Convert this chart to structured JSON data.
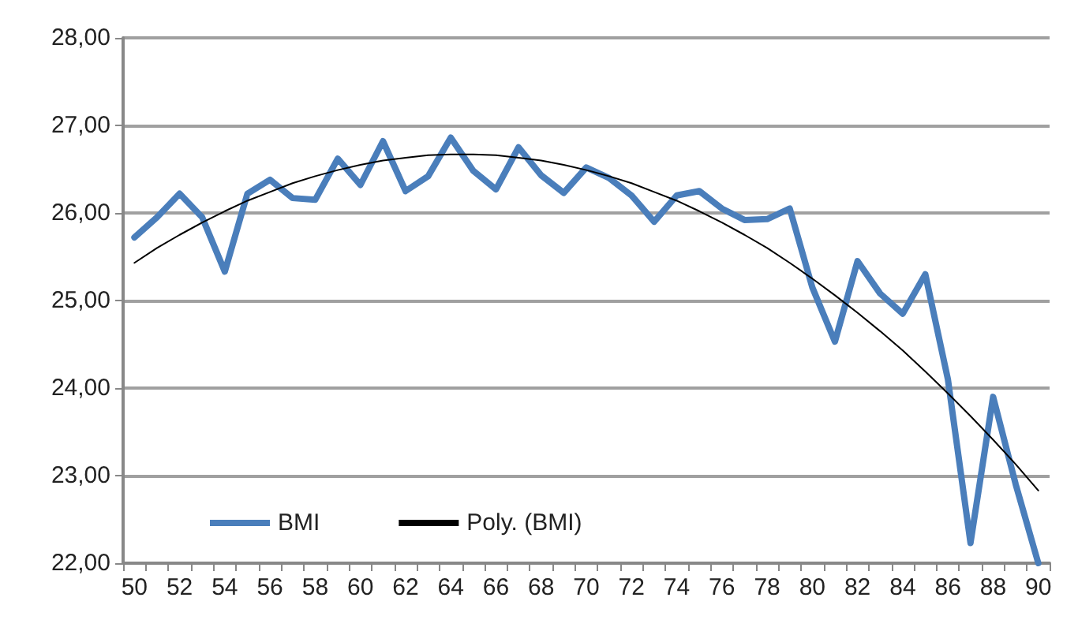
{
  "chart_data": {
    "type": "line",
    "categories": [
      "50",
      null,
      "52",
      null,
      "54",
      null,
      "56",
      null,
      "58",
      null,
      "60",
      null,
      "62",
      null,
      "64",
      null,
      "66",
      null,
      "68",
      null,
      "70",
      null,
      "72",
      null,
      "74",
      null,
      "76",
      null,
      "78",
      null,
      "80",
      null,
      "82",
      null,
      "84",
      null,
      "86",
      null,
      "88",
      null,
      "90"
    ],
    "series": [
      {
        "name": "BMI",
        "color": "#4a7ebb",
        "values": [
          25.72,
          25.95,
          26.22,
          25.95,
          25.33,
          26.22,
          26.38,
          26.17,
          26.15,
          26.62,
          26.32,
          26.82,
          26.25,
          26.42,
          26.86,
          26.48,
          26.27,
          26.75,
          26.43,
          26.23,
          26.52,
          26.4,
          26.2,
          25.9,
          26.2,
          26.25,
          26.05,
          25.92,
          25.93,
          26.05,
          25.15,
          24.53,
          25.45,
          25.08,
          24.85,
          25.3,
          24.1,
          22.23,
          23.9,
          22.9,
          22.0
        ]
      },
      {
        "name": "Poly. (BMI)",
        "color": "#000000",
        "values": [
          25.43,
          25.6,
          25.75,
          25.89,
          26.02,
          26.14,
          26.24,
          26.34,
          26.42,
          26.49,
          26.55,
          26.6,
          26.63,
          26.66,
          26.67,
          26.67,
          26.66,
          26.63,
          26.6,
          26.55,
          26.49,
          26.42,
          26.34,
          26.24,
          26.14,
          26.02,
          25.89,
          25.75,
          25.6,
          25.43,
          25.25,
          25.06,
          24.86,
          24.65,
          24.43,
          24.19,
          23.94,
          23.68,
          23.41,
          23.13,
          22.83
        ]
      }
    ],
    "ylim": [
      22,
      28
    ],
    "yticks": [
      {
        "value": 22,
        "label": "22,00"
      },
      {
        "value": 23,
        "label": "23,00"
      },
      {
        "value": 24,
        "label": "24,00"
      },
      {
        "value": 25,
        "label": "25,00"
      },
      {
        "value": 26,
        "label": "26,00"
      },
      {
        "value": 27,
        "label": "27,00"
      },
      {
        "value": 28,
        "label": "28,00"
      }
    ],
    "grid": "y",
    "legend": "bottom left",
    "marker": "none",
    "line_style": "solid"
  }
}
